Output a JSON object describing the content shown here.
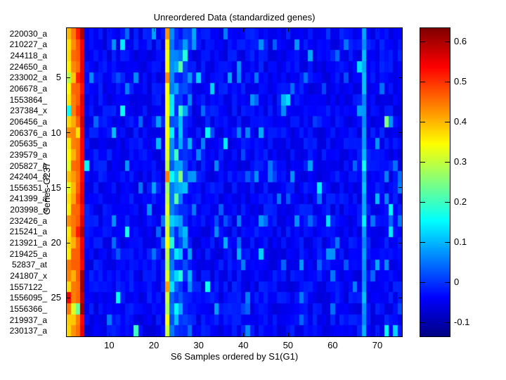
{
  "figure": {
    "title": "Unreordered Data (standardized genes)",
    "xlabel": "S6 Samples ordered by S1(G1)",
    "ylabel": "Genes-G237"
  },
  "chart_data": {
    "type": "heatmap",
    "title": "Unreordered Data (standardized genes)",
    "xlabel": "S6 Samples ordered by S1(G1)",
    "ylabel": "Genes-G237",
    "n_rows": 28,
    "n_cols": 75,
    "row_labels": [
      "220030_a",
      "210227_a",
      "244118_a",
      "224650_a",
      "233002_a",
      "206678_a",
      "1553864_",
      "237384_x",
      "206456_a",
      "206376_a",
      "205635_a",
      "239579_a",
      "205827_a",
      "242404_a",
      "1556351_",
      "241399_a",
      "203998_s",
      "232426_a",
      "215241_a",
      "213921_a",
      "219425_a",
      "52837_at",
      "241807_x",
      "1557122_",
      "1556095_",
      "1556366_",
      "219937_a",
      "230137_a"
    ],
    "x_tick_values": [
      10,
      20,
      30,
      40,
      50,
      60,
      70
    ],
    "y_tick_values": [
      5,
      10,
      15,
      20,
      25
    ],
    "colorbar": {
      "colormap": "jet",
      "vmin": -0.135,
      "vmax": 0.634,
      "tick_values": [
        0.6,
        0.5,
        0.4,
        0.3,
        0.2,
        0.1,
        0,
        -0.1
      ],
      "tick_labels": [
        "0.6",
        "0.5",
        "0.4",
        "0.3",
        "0.2",
        "0.1",
        "0",
        "-0.1"
      ]
    },
    "column_base": [
      0.37,
      0.43,
      0.46,
      0.56,
      -0.04,
      -0.04,
      -0.04,
      -0.04,
      -0.04,
      -0.04,
      -0.04,
      -0.04,
      -0.04,
      -0.04,
      -0.04,
      -0.04,
      -0.04,
      -0.04,
      -0.04,
      -0.04,
      -0.04,
      -0.04,
      0.33,
      0.05,
      0.01,
      0.0,
      -0.01,
      -0.02,
      -0.04,
      -0.04,
      -0.04,
      -0.04,
      -0.04,
      -0.04,
      -0.04,
      -0.04,
      -0.04,
      -0.04,
      -0.04,
      -0.04,
      -0.04,
      -0.04,
      -0.04,
      -0.04,
      -0.04,
      -0.04,
      -0.04,
      -0.04,
      -0.04,
      -0.04,
      -0.04,
      -0.04,
      -0.04,
      -0.04,
      -0.04,
      -0.04,
      -0.04,
      -0.04,
      -0.04,
      -0.04,
      -0.04,
      -0.04,
      -0.04,
      -0.04,
      -0.04,
      -0.04,
      0.09,
      -0.04,
      -0.04,
      -0.04,
      -0.04,
      -0.04,
      -0.04,
      -0.04,
      -0.04
    ],
    "per_row_columns": {
      "1": [
        0.4,
        0.37,
        0.37,
        0.36,
        0.3,
        0.36,
        0.35,
        0.15,
        0.36,
        0.44,
        0.37,
        0.36,
        0.32,
        0.38,
        0.33,
        0.37,
        0.36,
        0.43,
        0.37,
        0.38,
        0.37,
        0.44,
        0.43,
        0.38,
        0.53,
        0.44,
        0.37,
        0.38
      ],
      "2": [
        0.46,
        0.42,
        0.45,
        0.44,
        0.38,
        0.45,
        0.44,
        0.45,
        0.41,
        0.45,
        0.44,
        0.39,
        0.44,
        0.43,
        0.4,
        0.4,
        0.46,
        0.45,
        0.44,
        0.4,
        0.45,
        0.46,
        0.39,
        0.44,
        0.45,
        0.33,
        0.39,
        0.44
      ],
      "3": [
        0.52,
        0.47,
        0.46,
        0.47,
        0.52,
        0.46,
        0.48,
        0.5,
        0.47,
        0.38,
        0.46,
        0.46,
        0.47,
        0.46,
        0.46,
        0.5,
        0.46,
        0.47,
        0.52,
        0.47,
        0.46,
        0.47,
        0.46,
        0.47,
        0.47,
        0.22,
        0.45,
        0.47
      ],
      "4": [
        0.6,
        0.55,
        0.55,
        0.54,
        0.56,
        0.54,
        0.55,
        0.55,
        0.56,
        0.55,
        0.55,
        0.54,
        0.54,
        0.55,
        0.56,
        0.55,
        0.54,
        0.56,
        0.6,
        0.55,
        0.55,
        0.55,
        0.61,
        0.6,
        0.59,
        0.6,
        0.55,
        0.54
      ],
      "23": [
        0.42,
        0.35,
        0.33,
        0.35,
        0.44,
        0.33,
        0.35,
        0.33,
        0.32,
        0.34,
        0.33,
        0.32,
        0.3,
        0.45,
        0.28,
        0.3,
        0.34,
        0.3,
        0.32,
        0.34,
        0.3,
        0.28,
        0.33,
        0.42,
        0.3,
        0.28,
        0.35,
        0.3
      ]
    },
    "noise_sd": 0.03,
    "row_noise_sd": 0.015,
    "speckle": {
      "prob": 0.055,
      "hot_cols": [
        24,
        25,
        26,
        27,
        28
      ],
      "hot_prob": 0.3,
      "min": 0.07,
      "max": 0.12
    },
    "seed": 11,
    "bright_cells": [
      [
        2,
        13,
        0.14
      ],
      [
        3,
        27,
        0.18
      ],
      [
        4,
        26,
        0.22
      ],
      [
        4,
        66,
        0.13
      ],
      [
        5,
        30,
        0.12
      ],
      [
        6,
        33,
        0.12
      ],
      [
        7,
        50,
        0.13
      ],
      [
        8,
        13,
        0.16
      ],
      [
        8,
        26,
        0.2
      ],
      [
        9,
        72,
        0.25
      ],
      [
        10,
        32,
        0.15
      ],
      [
        11,
        36,
        0.14
      ],
      [
        12,
        25,
        0.2
      ],
      [
        13,
        5,
        0.15
      ],
      [
        14,
        26,
        0.25
      ],
      [
        15,
        57,
        0.14
      ],
      [
        16,
        25,
        0.22
      ],
      [
        17,
        73,
        0.15
      ],
      [
        18,
        59,
        0.13
      ],
      [
        19,
        14,
        0.17
      ],
      [
        19,
        73,
        0.14
      ],
      [
        20,
        24,
        0.18
      ],
      [
        21,
        44,
        0.12
      ],
      [
        23,
        26,
        0.18
      ],
      [
        24,
        32,
        0.16
      ],
      [
        25,
        12,
        0.15
      ],
      [
        26,
        25,
        0.15
      ],
      [
        28,
        16,
        0.2
      ],
      [
        28,
        72,
        0.15
      ],
      [
        28,
        74,
        0.12
      ]
    ]
  }
}
